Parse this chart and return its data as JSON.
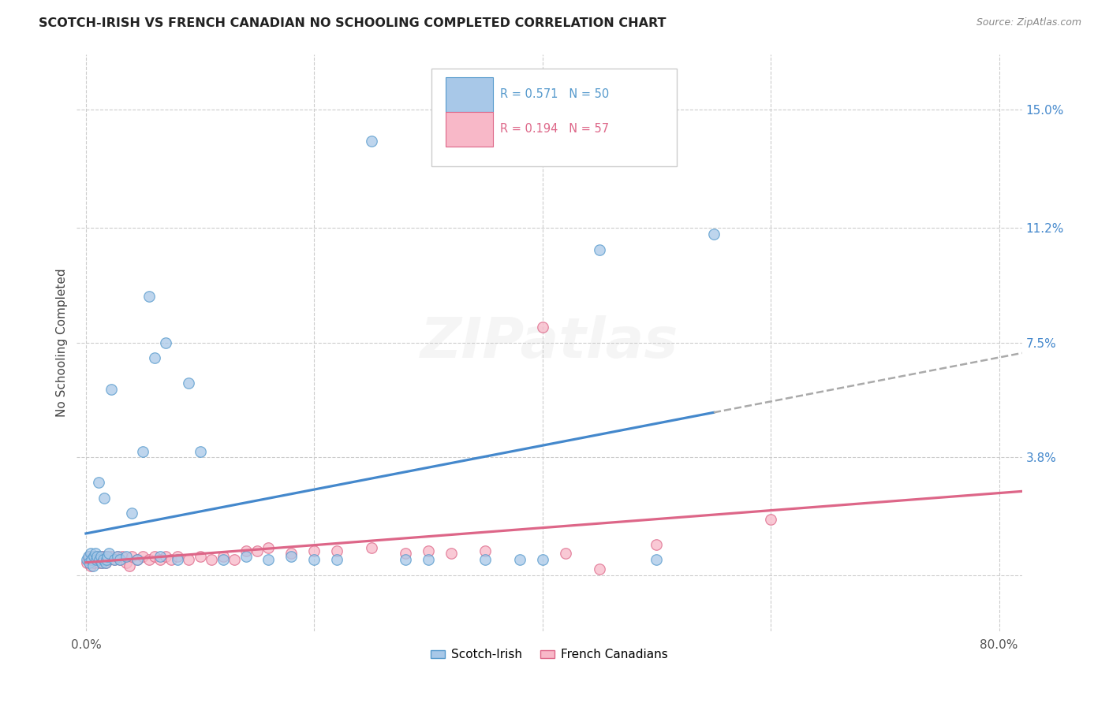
{
  "title": "SCOTCH-IRISH VS FRENCH CANADIAN NO SCHOOLING COMPLETED CORRELATION CHART",
  "source": "Source: ZipAtlas.com",
  "ylabel": "No Schooling Completed",
  "legend1_label": "Scotch-Irish",
  "legend2_label": "French Canadians",
  "R1": "0.571",
  "N1": "50",
  "R2": "0.194",
  "N2": "57",
  "blue_fill": "#a8c8e8",
  "blue_edge": "#5599cc",
  "pink_fill": "#f8b8c8",
  "pink_edge": "#dd6688",
  "blue_line": "#4488cc",
  "pink_line": "#dd6688",
  "dash_color": "#aaaaaa",
  "grid_color": "#cccccc",
  "bg_color": "#ffffff",
  "right_tick_color": "#4488cc",
  "xlim": [
    -0.008,
    0.82
  ],
  "ylim": [
    -0.018,
    0.168
  ],
  "xticks": [
    0.0,
    0.2,
    0.4,
    0.6,
    0.8
  ],
  "ytick_vals": [
    0.038,
    0.075,
    0.112,
    0.15
  ],
  "ytick_labels": [
    "3.8%",
    "7.5%",
    "11.2%",
    "15.0%"
  ],
  "si_x": [
    0.001,
    0.002,
    0.003,
    0.004,
    0.005,
    0.006,
    0.007,
    0.008,
    0.009,
    0.01,
    0.011,
    0.012,
    0.013,
    0.014,
    0.015,
    0.016,
    0.017,
    0.018,
    0.019,
    0.02,
    0.022,
    0.025,
    0.028,
    0.03,
    0.035,
    0.04,
    0.045,
    0.05,
    0.055,
    0.06,
    0.065,
    0.07,
    0.08,
    0.09,
    0.1,
    0.12,
    0.14,
    0.16,
    0.18,
    0.2,
    0.22,
    0.25,
    0.28,
    0.3,
    0.35,
    0.38,
    0.4,
    0.45,
    0.5,
    0.55
  ],
  "si_y": [
    0.005,
    0.006,
    0.004,
    0.007,
    0.005,
    0.003,
    0.006,
    0.007,
    0.005,
    0.006,
    0.03,
    0.005,
    0.006,
    0.004,
    0.005,
    0.025,
    0.004,
    0.005,
    0.006,
    0.007,
    0.06,
    0.005,
    0.006,
    0.005,
    0.006,
    0.02,
    0.005,
    0.04,
    0.09,
    0.07,
    0.006,
    0.075,
    0.005,
    0.062,
    0.04,
    0.005,
    0.006,
    0.005,
    0.006,
    0.005,
    0.005,
    0.14,
    0.005,
    0.005,
    0.005,
    0.005,
    0.005,
    0.105,
    0.005,
    0.11
  ],
  "fc_x": [
    0.001,
    0.002,
    0.003,
    0.004,
    0.005,
    0.006,
    0.007,
    0.008,
    0.009,
    0.01,
    0.011,
    0.012,
    0.013,
    0.014,
    0.015,
    0.016,
    0.017,
    0.018,
    0.019,
    0.02,
    0.022,
    0.025,
    0.028,
    0.03,
    0.032,
    0.035,
    0.038,
    0.04,
    0.045,
    0.05,
    0.055,
    0.06,
    0.065,
    0.07,
    0.075,
    0.08,
    0.09,
    0.1,
    0.11,
    0.12,
    0.13,
    0.14,
    0.15,
    0.16,
    0.18,
    0.2,
    0.22,
    0.25,
    0.28,
    0.3,
    0.32,
    0.35,
    0.4,
    0.42,
    0.45,
    0.5,
    0.6
  ],
  "fc_y": [
    0.004,
    0.005,
    0.006,
    0.003,
    0.005,
    0.006,
    0.004,
    0.006,
    0.005,
    0.006,
    0.004,
    0.005,
    0.006,
    0.004,
    0.005,
    0.006,
    0.004,
    0.005,
    0.006,
    0.005,
    0.006,
    0.005,
    0.006,
    0.005,
    0.006,
    0.004,
    0.003,
    0.006,
    0.005,
    0.006,
    0.005,
    0.006,
    0.005,
    0.006,
    0.005,
    0.006,
    0.005,
    0.006,
    0.005,
    0.006,
    0.005,
    0.008,
    0.008,
    0.009,
    0.007,
    0.008,
    0.008,
    0.009,
    0.007,
    0.008,
    0.007,
    0.008,
    0.08,
    0.007,
    0.002,
    0.01,
    0.018
  ],
  "watermark": "ZIPatlas",
  "wm_fontsize": 52,
  "wm_alpha": 0.18
}
